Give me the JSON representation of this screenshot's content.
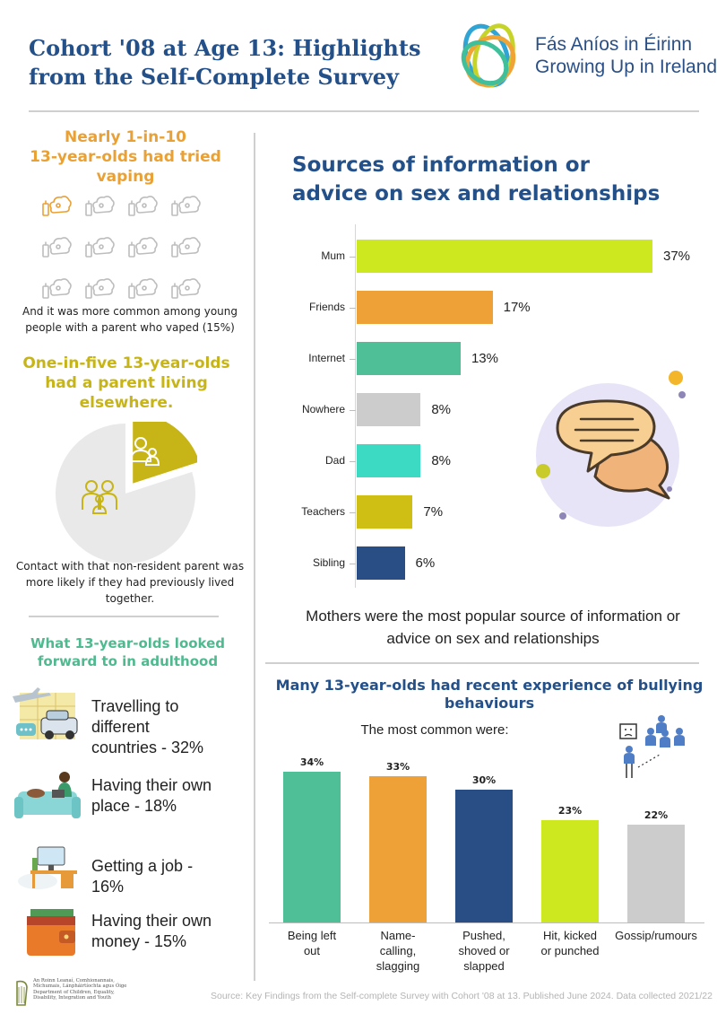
{
  "header": {
    "title": "Cohort '08 at Age 13: Highlights from the Self-Complete Survey",
    "logo_line1": "Fás Aníos in Éirinn",
    "logo_line2": "Growing Up in Ireland"
  },
  "vaping": {
    "heading_line1": "Nearly 1-in-10",
    "heading_line2": "13-year-olds had tried",
    "heading_line3": "vaping",
    "icon": "vape-icon",
    "highlighted_count": 1,
    "total_icons": 12,
    "note_line1": "And it was more common among young",
    "note_line2": "people with a parent who vaped (15%)"
  },
  "parent": {
    "heading_line1": "One-in-five 13-year-olds",
    "heading_line2": "had a parent living",
    "heading_line3": "elsewhere.",
    "share": 0.2,
    "note_line1": "Contact with that non-resident parent was",
    "note_line2": "more likely if they had previously lived",
    "note_line3": "together."
  },
  "adulthood": {
    "heading_line1": "What 13-year-olds looked",
    "heading_line2": "forward to in adulthood",
    "items": [
      {
        "line1": "Travelling to different",
        "line2": "countries - 32%",
        "icon": "travel-icon"
      },
      {
        "line1": "Having their own",
        "line2": "place - 18%",
        "icon": "sofa-icon"
      },
      {
        "line1": "Getting a job - 16%",
        "line2": "",
        "icon": "desk-icon"
      },
      {
        "line1": "Having their own",
        "line2": "money - 15%",
        "icon": "wallet-icon"
      }
    ]
  },
  "sources": {
    "title_line1": "Sources of information or",
    "title_line2": "advice on sex and relationships",
    "note_line1": "Mothers were the most popular source of information or",
    "note_line2": "advice on sex and relationships"
  },
  "bullying": {
    "title_line1": "Many 13-year-olds had recent experience of bullying",
    "title_line2": "behaviours",
    "subtitle": "The most common were:"
  },
  "footer": {
    "dept_line1": "An Roinn Leanaí, Comhionannais,",
    "dept_line2": "Míchumais, Lánpháirtíochta agus Óige",
    "dept_line3": "Department of Children, Equality,",
    "dept_line4": "Disability, Integration and Youth",
    "source": "Source: Key Findings from the Self-complete Survey with Cohort '08 at 13.  Published June 2024. Data collected 2021/22"
  },
  "colors": {
    "brand_blue": "#24508a",
    "orange": "#e9a136",
    "yellow": "#c7b416",
    "green": "#4fb98f"
  },
  "chart_data": [
    {
      "type": "bar",
      "orientation": "horizontal",
      "title": "Sources of information or advice on sex and relationships",
      "categories": [
        "Mum",
        "Friends",
        "Internet",
        "Nowhere",
        "Dad",
        "Teachers",
        "Sibling"
      ],
      "values": [
        37,
        17,
        13,
        8,
        8,
        7,
        6
      ],
      "value_labels": [
        "37%",
        "17%",
        "13%",
        "8%",
        "8%",
        "7%",
        "6%"
      ],
      "colors": [
        "#cde81e",
        "#eda137",
        "#4fbf98",
        "#cccccc",
        "#3cd9c3",
        "#cfbe14",
        "#294d85"
      ],
      "xlim": [
        0,
        37
      ]
    },
    {
      "type": "bar",
      "orientation": "vertical",
      "title": "Many 13-year-olds had recent experience of bullying behaviours",
      "categories": [
        [
          "Being left",
          "out"
        ],
        [
          "Name-",
          "calling,",
          "slagging"
        ],
        [
          "Pushed,",
          "shoved or",
          "slapped"
        ],
        [
          "Hit, kicked",
          "or punched"
        ],
        [
          "Gossip/rumours"
        ]
      ],
      "values": [
        34,
        33,
        30,
        23,
        22
      ],
      "value_labels": [
        "34%",
        "33%",
        "30%",
        "23%",
        "22%"
      ],
      "colors": [
        "#4fbf98",
        "#eda137",
        "#294d85",
        "#cde81e",
        "#cccccc"
      ],
      "ylim": [
        0,
        34
      ]
    }
  ]
}
